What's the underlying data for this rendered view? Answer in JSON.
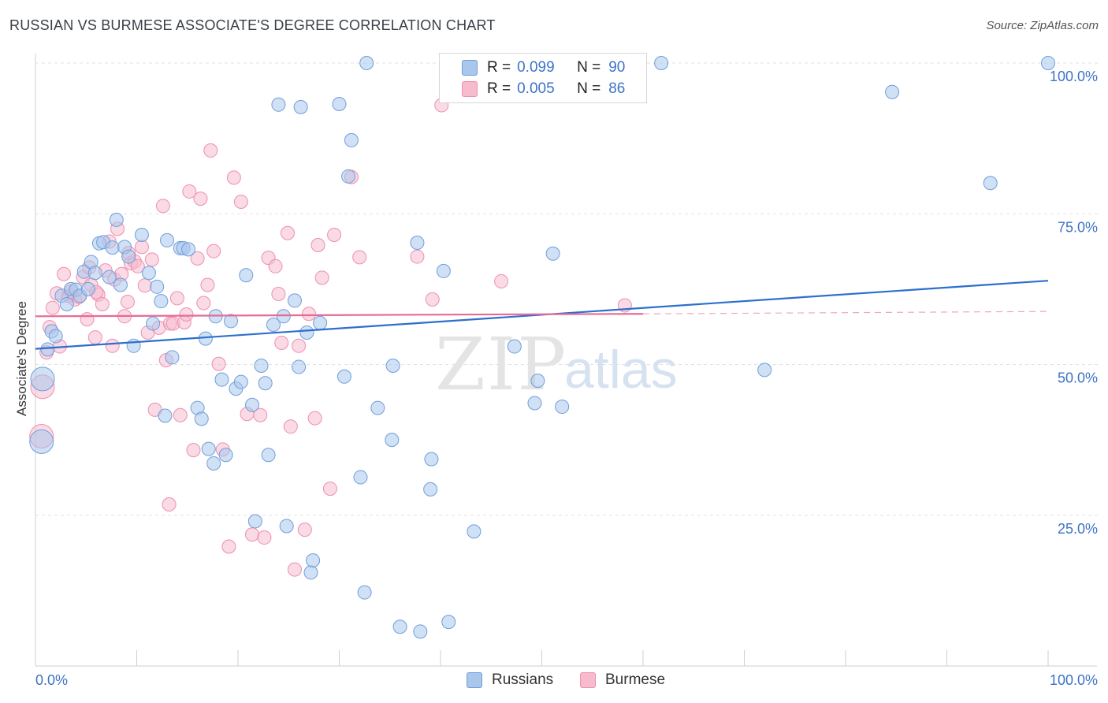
{
  "title": "RUSSIAN VS BURMESE ASSOCIATE'S DEGREE CORRELATION CHART",
  "source": "Source: ZipAtlas.com",
  "watermark": {
    "zip": "ZIP",
    "atlas": "atlas"
  },
  "legend": {
    "russians": {
      "r_label": "R =",
      "r_value": "0.099",
      "n_label": "N =",
      "n_value": "90"
    },
    "burmese": {
      "r_label": "R =",
      "r_value": "0.005",
      "n_label": "N =",
      "n_value": "86"
    }
  },
  "bottom_legend": {
    "russians": "Russians",
    "burmese": "Burmese"
  },
  "colors": {
    "russians_fill": "#a9c6ec",
    "russians_stroke": "#6f9fdb",
    "russians_line": "#2d6fce",
    "burmese_fill": "#f6bccd",
    "burmese_stroke": "#ee8fae",
    "burmese_line": "#e76a93",
    "tick_label": "#3d73c5",
    "grid": "#e2e2e2"
  },
  "chart_data": {
    "type": "scatter",
    "title": "RUSSIAN VS BURMESE ASSOCIATE'S DEGREE CORRELATION CHART",
    "xlabel": "",
    "ylabel": "Associate's Degree",
    "xlim": [
      0,
      100
    ],
    "ylim": [
      0,
      100
    ],
    "x_tick_labels": [
      "0.0%",
      "100.0%"
    ],
    "y_ticks": [
      25,
      50,
      75,
      100
    ],
    "y_tick_labels": [
      "25.0%",
      "50.0%",
      "75.0%",
      "100.0%"
    ],
    "grid": true,
    "legend_position": "top-center",
    "series": [
      {
        "name": "Russians",
        "r": 0.099,
        "n": 90,
        "trend": {
          "x": [
            0,
            100
          ],
          "y": [
            52.6,
            63.9
          ],
          "dashed_after": null
        },
        "points": [
          [
            0.6,
            37.2,
            "big"
          ],
          [
            0.7,
            47.6,
            "big"
          ],
          [
            1.2,
            52.5
          ],
          [
            1.6,
            55.5
          ],
          [
            2.0,
            54.7
          ],
          [
            2.6,
            61.4
          ],
          [
            3.1,
            60.0
          ],
          [
            3.5,
            62.5
          ],
          [
            4.0,
            62.4
          ],
          [
            4.4,
            61.4
          ],
          [
            4.8,
            65.4
          ],
          [
            5.2,
            62.5
          ],
          [
            5.5,
            67.0
          ],
          [
            5.9,
            65.2
          ],
          [
            6.3,
            70.1
          ],
          [
            6.7,
            70.3
          ],
          [
            7.3,
            64.5
          ],
          [
            7.6,
            69.4
          ],
          [
            8.0,
            74.0
          ],
          [
            8.4,
            63.2
          ],
          [
            8.8,
            69.5
          ],
          [
            9.2,
            67.9
          ],
          [
            9.7,
            53.1
          ],
          [
            10.5,
            71.5
          ],
          [
            11.2,
            65.2
          ],
          [
            11.6,
            56.8
          ],
          [
            12.0,
            62.9
          ],
          [
            12.4,
            60.5
          ],
          [
            12.8,
            41.5
          ],
          [
            13.0,
            70.6
          ],
          [
            13.5,
            51.2
          ],
          [
            14.3,
            69.3
          ],
          [
            14.6,
            69.3
          ],
          [
            15.1,
            69.1
          ],
          [
            16.0,
            42.8
          ],
          [
            16.4,
            41.0
          ],
          [
            16.8,
            54.3
          ],
          [
            17.1,
            36.0
          ],
          [
            17.6,
            33.6
          ],
          [
            17.8,
            58.0
          ],
          [
            18.4,
            47.5
          ],
          [
            18.8,
            35.0
          ],
          [
            19.3,
            57.2
          ],
          [
            19.8,
            46.0
          ],
          [
            20.3,
            47.1
          ],
          [
            20.8,
            64.8
          ],
          [
            21.4,
            43.3
          ],
          [
            21.7,
            24.0
          ],
          [
            22.3,
            49.8
          ],
          [
            22.7,
            46.9
          ],
          [
            23.0,
            35.0
          ],
          [
            23.5,
            56.6
          ],
          [
            24.0,
            93.1
          ],
          [
            24.5,
            58.0
          ],
          [
            24.8,
            23.2
          ],
          [
            25.6,
            60.6
          ],
          [
            26.0,
            49.6
          ],
          [
            26.2,
            92.7
          ],
          [
            26.8,
            55.3
          ],
          [
            27.2,
            15.5
          ],
          [
            27.4,
            17.5
          ],
          [
            28.1,
            56.9
          ],
          [
            30.0,
            93.2
          ],
          [
            30.5,
            48.0
          ],
          [
            30.9,
            81.2
          ],
          [
            31.2,
            87.2
          ],
          [
            32.1,
            31.3
          ],
          [
            32.5,
            12.2
          ],
          [
            32.7,
            100.0
          ],
          [
            33.8,
            42.8
          ],
          [
            35.2,
            37.5
          ],
          [
            35.3,
            49.8
          ],
          [
            36.0,
            6.5
          ],
          [
            37.7,
            70.2
          ],
          [
            38.0,
            5.7
          ],
          [
            39.0,
            29.3
          ],
          [
            39.1,
            34.3
          ],
          [
            40.3,
            65.5
          ],
          [
            40.8,
            7.3
          ],
          [
            43.3,
            22.3
          ],
          [
            47.3,
            53.0
          ],
          [
            49.3,
            43.6
          ],
          [
            49.6,
            47.3
          ],
          [
            51.1,
            68.4
          ],
          [
            52.0,
            43.0
          ],
          [
            59.4,
            100.0
          ],
          [
            61.8,
            100.0
          ],
          [
            72.0,
            49.1
          ],
          [
            84.6,
            95.2
          ],
          [
            94.3,
            80.1
          ],
          [
            100.0,
            100.0
          ]
        ]
      },
      {
        "name": "Burmese",
        "r": 0.005,
        "n": 86,
        "trend": {
          "x": [
            0,
            60
          ],
          "y": [
            58.0,
            58.4
          ],
          "dashed_after": {
            "x": [
              60,
              100
            ],
            "y": [
              58.4,
              58.8
            ]
          }
        },
        "points": [
          [
            0.6,
            38.1,
            "big"
          ],
          [
            0.7,
            46.3,
            "big"
          ],
          [
            1.1,
            52.0
          ],
          [
            1.4,
            56.2
          ],
          [
            1.7,
            59.4
          ],
          [
            2.1,
            61.8
          ],
          [
            2.4,
            53.0
          ],
          [
            2.8,
            65.0
          ],
          [
            3.3,
            61.4
          ],
          [
            3.9,
            60.8
          ],
          [
            4.3,
            61.2
          ],
          [
            4.7,
            64.5
          ],
          [
            5.1,
            57.5
          ],
          [
            5.5,
            63.2
          ],
          [
            5.9,
            54.5
          ],
          [
            6.2,
            61.6
          ],
          [
            6.6,
            60.0
          ],
          [
            6.9,
            65.6
          ],
          [
            7.3,
            70.4
          ],
          [
            7.6,
            53.1
          ],
          [
            7.8,
            64.1
          ],
          [
            8.1,
            72.5
          ],
          [
            8.5,
            65.0
          ],
          [
            8.8,
            58.0
          ],
          [
            9.1,
            60.4
          ],
          [
            9.4,
            66.8
          ],
          [
            9.8,
            67.1
          ],
          [
            10.1,
            66.3
          ],
          [
            10.5,
            69.5
          ],
          [
            10.8,
            63.1
          ],
          [
            11.1,
            55.3
          ],
          [
            11.5,
            67.4
          ],
          [
            11.8,
            42.5
          ],
          [
            12.2,
            56.1
          ],
          [
            12.6,
            76.3
          ],
          [
            12.9,
            50.7
          ],
          [
            13.3,
            56.8
          ],
          [
            13.6,
            56.8
          ],
          [
            14.0,
            61.0
          ],
          [
            14.3,
            41.6
          ],
          [
            14.7,
            57.0
          ],
          [
            14.9,
            58.3
          ],
          [
            15.2,
            78.7
          ],
          [
            15.6,
            35.8
          ],
          [
            16.0,
            67.6
          ],
          [
            16.3,
            77.5
          ],
          [
            16.6,
            60.2
          ],
          [
            17.0,
            63.2
          ],
          [
            17.3,
            85.5
          ],
          [
            17.6,
            68.8
          ],
          [
            18.1,
            50.1
          ],
          [
            18.5,
            35.9
          ],
          [
            19.1,
            19.8
          ],
          [
            19.6,
            81.0
          ],
          [
            20.3,
            77.0
          ],
          [
            20.9,
            41.8
          ],
          [
            21.4,
            21.8
          ],
          [
            22.2,
            41.6
          ],
          [
            22.6,
            21.3
          ],
          [
            23.0,
            67.7
          ],
          [
            23.7,
            66.3
          ],
          [
            24.0,
            61.7
          ],
          [
            24.3,
            53.6
          ],
          [
            24.9,
            71.8
          ],
          [
            25.2,
            39.7
          ],
          [
            25.6,
            16.0
          ],
          [
            26.0,
            53.1
          ],
          [
            26.6,
            22.6
          ],
          [
            27.0,
            58.4
          ],
          [
            27.6,
            41.1
          ],
          [
            27.9,
            69.8
          ],
          [
            28.3,
            64.4
          ],
          [
            29.1,
            29.4
          ],
          [
            29.5,
            71.5
          ],
          [
            31.2,
            81.1
          ],
          [
            32.0,
            67.8
          ],
          [
            37.7,
            67.9
          ],
          [
            39.2,
            60.8
          ],
          [
            40.1,
            93.0
          ],
          [
            46.0,
            63.8
          ],
          [
            58.2,
            59.8
          ],
          [
            9.2,
            68.5
          ],
          [
            13.2,
            26.8
          ],
          [
            3.5,
            62.1
          ],
          [
            5.3,
            66.1
          ],
          [
            6.0,
            62.0
          ]
        ]
      }
    ]
  }
}
